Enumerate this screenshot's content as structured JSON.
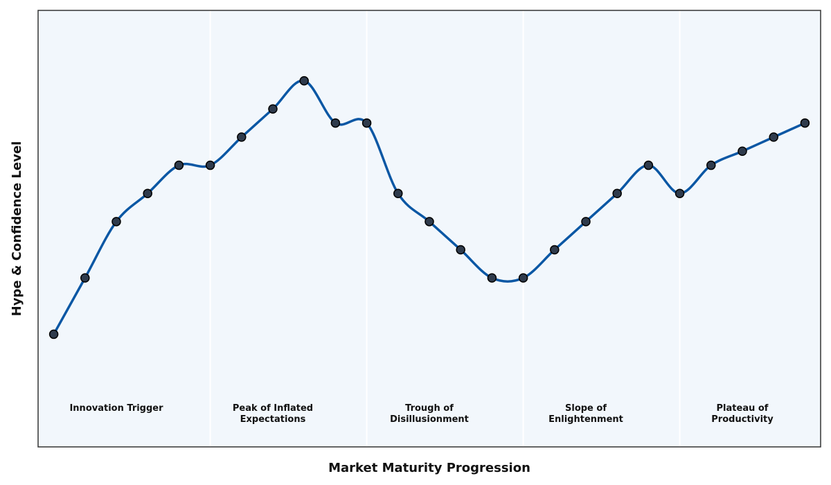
{
  "chart_data": {
    "type": "line",
    "x_label": "Market Maturity Progression",
    "y_label": "Hype & Confidence Level",
    "x": [
      0,
      1,
      2,
      3,
      4,
      5,
      6,
      7,
      8,
      9,
      10,
      11,
      12,
      13,
      14,
      15,
      16,
      17,
      18,
      19,
      20,
      21,
      22,
      23,
      24
    ],
    "series": [
      {
        "color": "#0b57a4",
        "marker_color": "#2f3b4c",
        "values": [
          4,
          6,
          8,
          9,
          10,
          10,
          11,
          12,
          13,
          11.5,
          11.5,
          9,
          8,
          7,
          6,
          6,
          7,
          8,
          9,
          10,
          9,
          10,
          10.5,
          11,
          11.5
        ]
      }
    ],
    "xlim": [
      -0.5,
      24.5
    ],
    "ylim": [
      0,
      15.5
    ],
    "background": "#f2f7fc",
    "phase_boundaries": [
      5,
      10,
      15,
      20
    ],
    "phases": [
      "Innovation Trigger",
      "Peak of Inflated\nExpectations",
      "Trough of\nDisillusionment",
      "Slope of\nEnlightenment",
      "Plateau of\nProductivity"
    ]
  }
}
